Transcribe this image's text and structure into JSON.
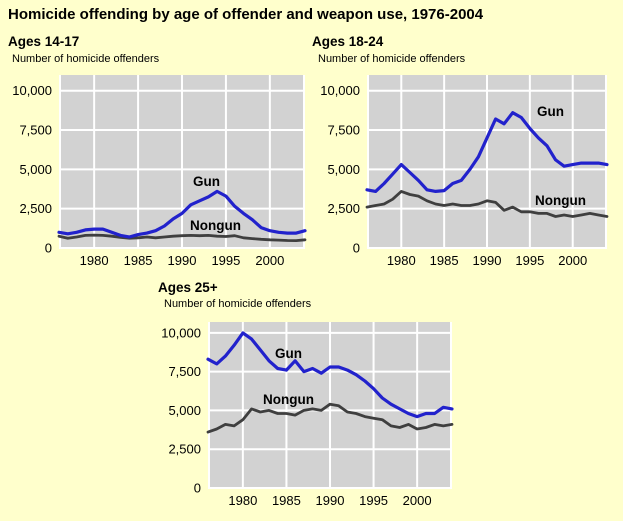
{
  "title": "Homicide offending by age of offender and weapon use, 1976-2004",
  "colors": {
    "background": "#FFFFCC",
    "plot_bg": "#D2D2D2",
    "grid": "#FFFFFF",
    "gun": "#2222CC",
    "nongun": "#3F3F3F",
    "text": "#000000"
  },
  "chart_data": [
    {
      "type": "line",
      "title": "Ages 14-17",
      "ylabel": "Number of homicide offenders",
      "x": [
        1976,
        1977,
        1978,
        1979,
        1980,
        1981,
        1982,
        1983,
        1984,
        1985,
        1986,
        1987,
        1988,
        1989,
        1990,
        1991,
        1992,
        1993,
        1994,
        1995,
        1996,
        1997,
        1998,
        1999,
        2000,
        2001,
        2002,
        2003,
        2004
      ],
      "xticks": [
        1980,
        1985,
        1990,
        1995,
        2000
      ],
      "yticks": [
        0,
        2500,
        5000,
        7500,
        10000
      ],
      "ytick_labels": [
        "0",
        "2,500",
        "5,000",
        "7,500",
        "10,000"
      ],
      "ylim": [
        0,
        11000
      ],
      "legend_position": "inline-annotations",
      "grid": true,
      "series": [
        {
          "name": "Gun",
          "values": [
            1000,
            900,
            1000,
            1150,
            1200,
            1200,
            1000,
            800,
            700,
            850,
            950,
            1100,
            1400,
            1850,
            2200,
            2750,
            3000,
            3250,
            3600,
            3300,
            2650,
            2200,
            1800,
            1300,
            1100,
            1000,
            950,
            950,
            1100
          ]
        },
        {
          "name": "Nongun",
          "values": [
            750,
            620,
            700,
            800,
            820,
            800,
            750,
            680,
            620,
            650,
            700,
            650,
            700,
            750,
            780,
            800,
            780,
            800,
            750,
            730,
            780,
            650,
            600,
            550,
            520,
            500,
            480,
            470,
            520
          ]
        }
      ]
    },
    {
      "type": "line",
      "title": "Ages 18-24",
      "ylabel": "Number of homicide offenders",
      "x": [
        1976,
        1977,
        1978,
        1979,
        1980,
        1981,
        1982,
        1983,
        1984,
        1985,
        1986,
        1987,
        1988,
        1989,
        1990,
        1991,
        1992,
        1993,
        1994,
        1995,
        1996,
        1997,
        1998,
        1999,
        2000,
        2001,
        2002,
        2003,
        2004
      ],
      "xticks": [
        1980,
        1985,
        1990,
        1995,
        2000
      ],
      "yticks": [
        0,
        2500,
        5000,
        7500,
        10000
      ],
      "ytick_labels": [
        "0",
        "2,500",
        "5,000",
        "7,500",
        "10,000"
      ],
      "ylim": [
        0,
        11000
      ],
      "legend_position": "inline-annotations",
      "grid": true,
      "series": [
        {
          "name": "Gun",
          "values": [
            3700,
            3600,
            4100,
            4700,
            5300,
            4800,
            4300,
            3700,
            3600,
            3650,
            4100,
            4300,
            5000,
            5800,
            7000,
            8200,
            7900,
            8600,
            8300,
            7600,
            7000,
            6500,
            5600,
            5200,
            5300,
            5400,
            5400,
            5400,
            5300
          ]
        },
        {
          "name": "Nongun",
          "values": [
            2600,
            2700,
            2800,
            3100,
            3600,
            3400,
            3300,
            3000,
            2800,
            2700,
            2800,
            2700,
            2700,
            2800,
            3000,
            2900,
            2400,
            2600,
            2300,
            2300,
            2200,
            2200,
            2000,
            2100,
            2000,
            2100,
            2200,
            2100,
            2000
          ]
        }
      ]
    },
    {
      "type": "line",
      "title": "Ages 25+",
      "ylabel": "Number of homicide offenders",
      "x": [
        1976,
        1977,
        1978,
        1979,
        1980,
        1981,
        1982,
        1983,
        1984,
        1985,
        1986,
        1987,
        1988,
        1989,
        1990,
        1991,
        1992,
        1993,
        1994,
        1995,
        1996,
        1997,
        1998,
        1999,
        2000,
        2001,
        2002,
        2003,
        2004
      ],
      "xticks": [
        1980,
        1985,
        1990,
        1995,
        2000
      ],
      "yticks": [
        0,
        2500,
        5000,
        7500,
        10000
      ],
      "ytick_labels": [
        "0",
        "2,500",
        "5,000",
        "7,500",
        "10,000"
      ],
      "ylim": [
        0,
        10700
      ],
      "legend_position": "inline-annotations",
      "grid": true,
      "series": [
        {
          "name": "Gun",
          "values": [
            8300,
            8000,
            8500,
            9200,
            10000,
            9600,
            8900,
            8200,
            7700,
            7600,
            8200,
            7500,
            7700,
            7400,
            7800,
            7800,
            7600,
            7300,
            6900,
            6400,
            5800,
            5400,
            5100,
            4800,
            4600,
            4800,
            4800,
            5200,
            5100
          ]
        },
        {
          "name": "Nongun",
          "values": [
            3600,
            3800,
            4100,
            4000,
            4400,
            5100,
            4900,
            5000,
            4800,
            4800,
            4700,
            5000,
            5100,
            5000,
            5400,
            5300,
            4900,
            4800,
            4600,
            4500,
            4400,
            4000,
            3900,
            4100,
            3800,
            3900,
            4100,
            4000,
            4100
          ]
        }
      ]
    }
  ]
}
